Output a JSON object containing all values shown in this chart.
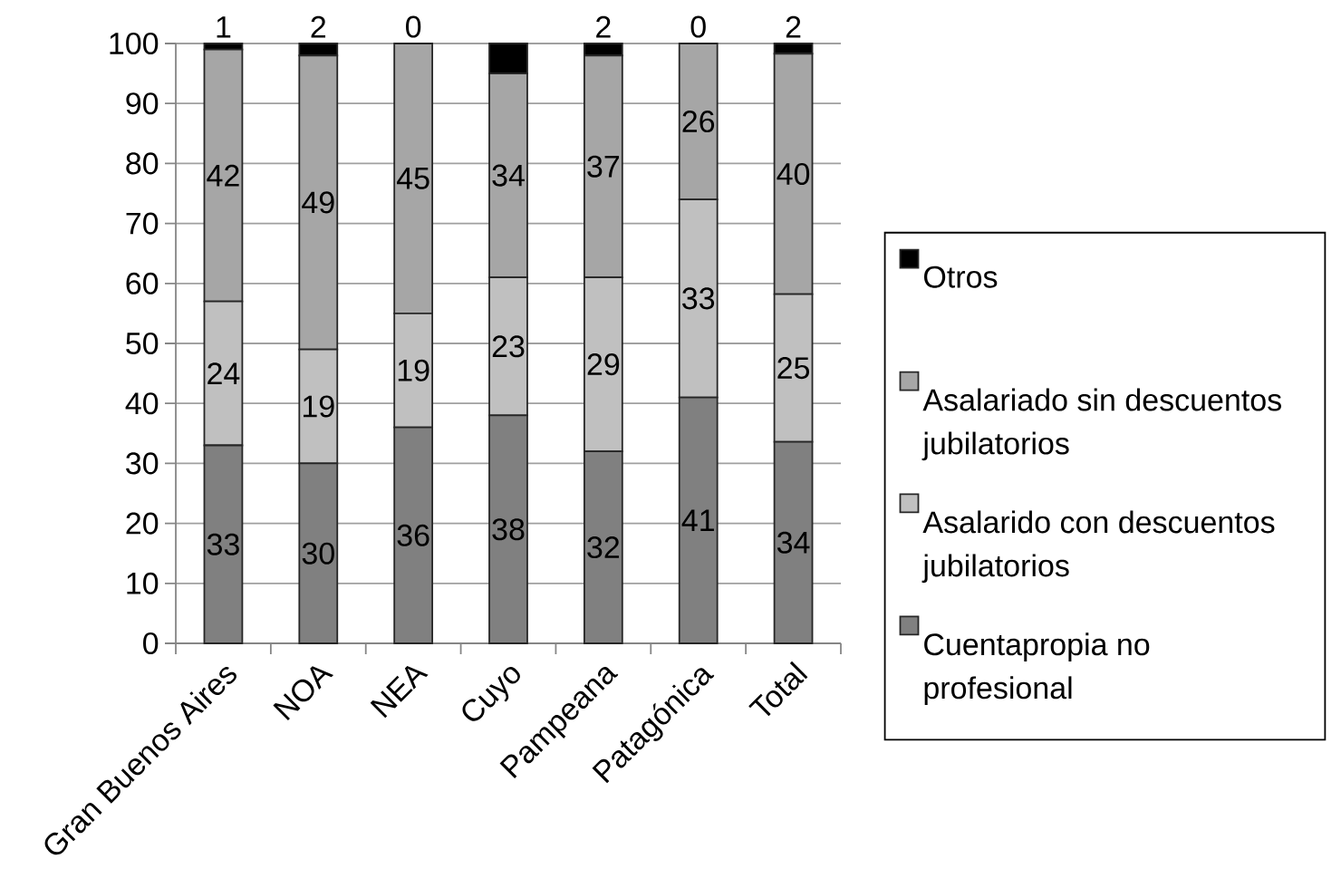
{
  "chart_data": {
    "type": "bar",
    "stacked": true,
    "categories": [
      "Gran Buenos Aires",
      "NOA",
      "NEA",
      "Cuyo",
      "Pampeana",
      "Patagónica",
      "Total"
    ],
    "series": [
      {
        "name": "Cuentapropia no profesional",
        "color": "#808080",
        "values": [
          33,
          30,
          36,
          38,
          32,
          41,
          33.6
        ],
        "value_labels": [
          "33",
          "30",
          "36",
          "38",
          "32",
          "41",
          "34"
        ]
      },
      {
        "name": "Asalarido con descuentos jubilatorios",
        "color": "#c0c0c0",
        "values": [
          24,
          19,
          19,
          23,
          29,
          33,
          24.6
        ],
        "value_labels": [
          "24",
          "19",
          "19",
          "23",
          "29",
          "33",
          "25"
        ]
      },
      {
        "name": "Asalariado sin descuentos jubilatorios",
        "color": "#a6a6a6",
        "values": [
          42,
          49,
          45,
          34,
          37,
          26,
          40.1
        ],
        "value_labels": [
          "42",
          "49",
          "45",
          "34",
          "37",
          "26",
          "40"
        ]
      },
      {
        "name": "Otros",
        "color": "#000000",
        "values": [
          1,
          2,
          0,
          5,
          2,
          0,
          1.7
        ],
        "value_labels": [
          "1",
          "2",
          "0",
          null,
          "2",
          "0",
          "2"
        ]
      }
    ],
    "ylim": [
      0,
      100
    ],
    "yticks": [
      0,
      10,
      20,
      30,
      40,
      50,
      60,
      70,
      80,
      90,
      100
    ],
    "grid": "y",
    "legend": "right"
  }
}
